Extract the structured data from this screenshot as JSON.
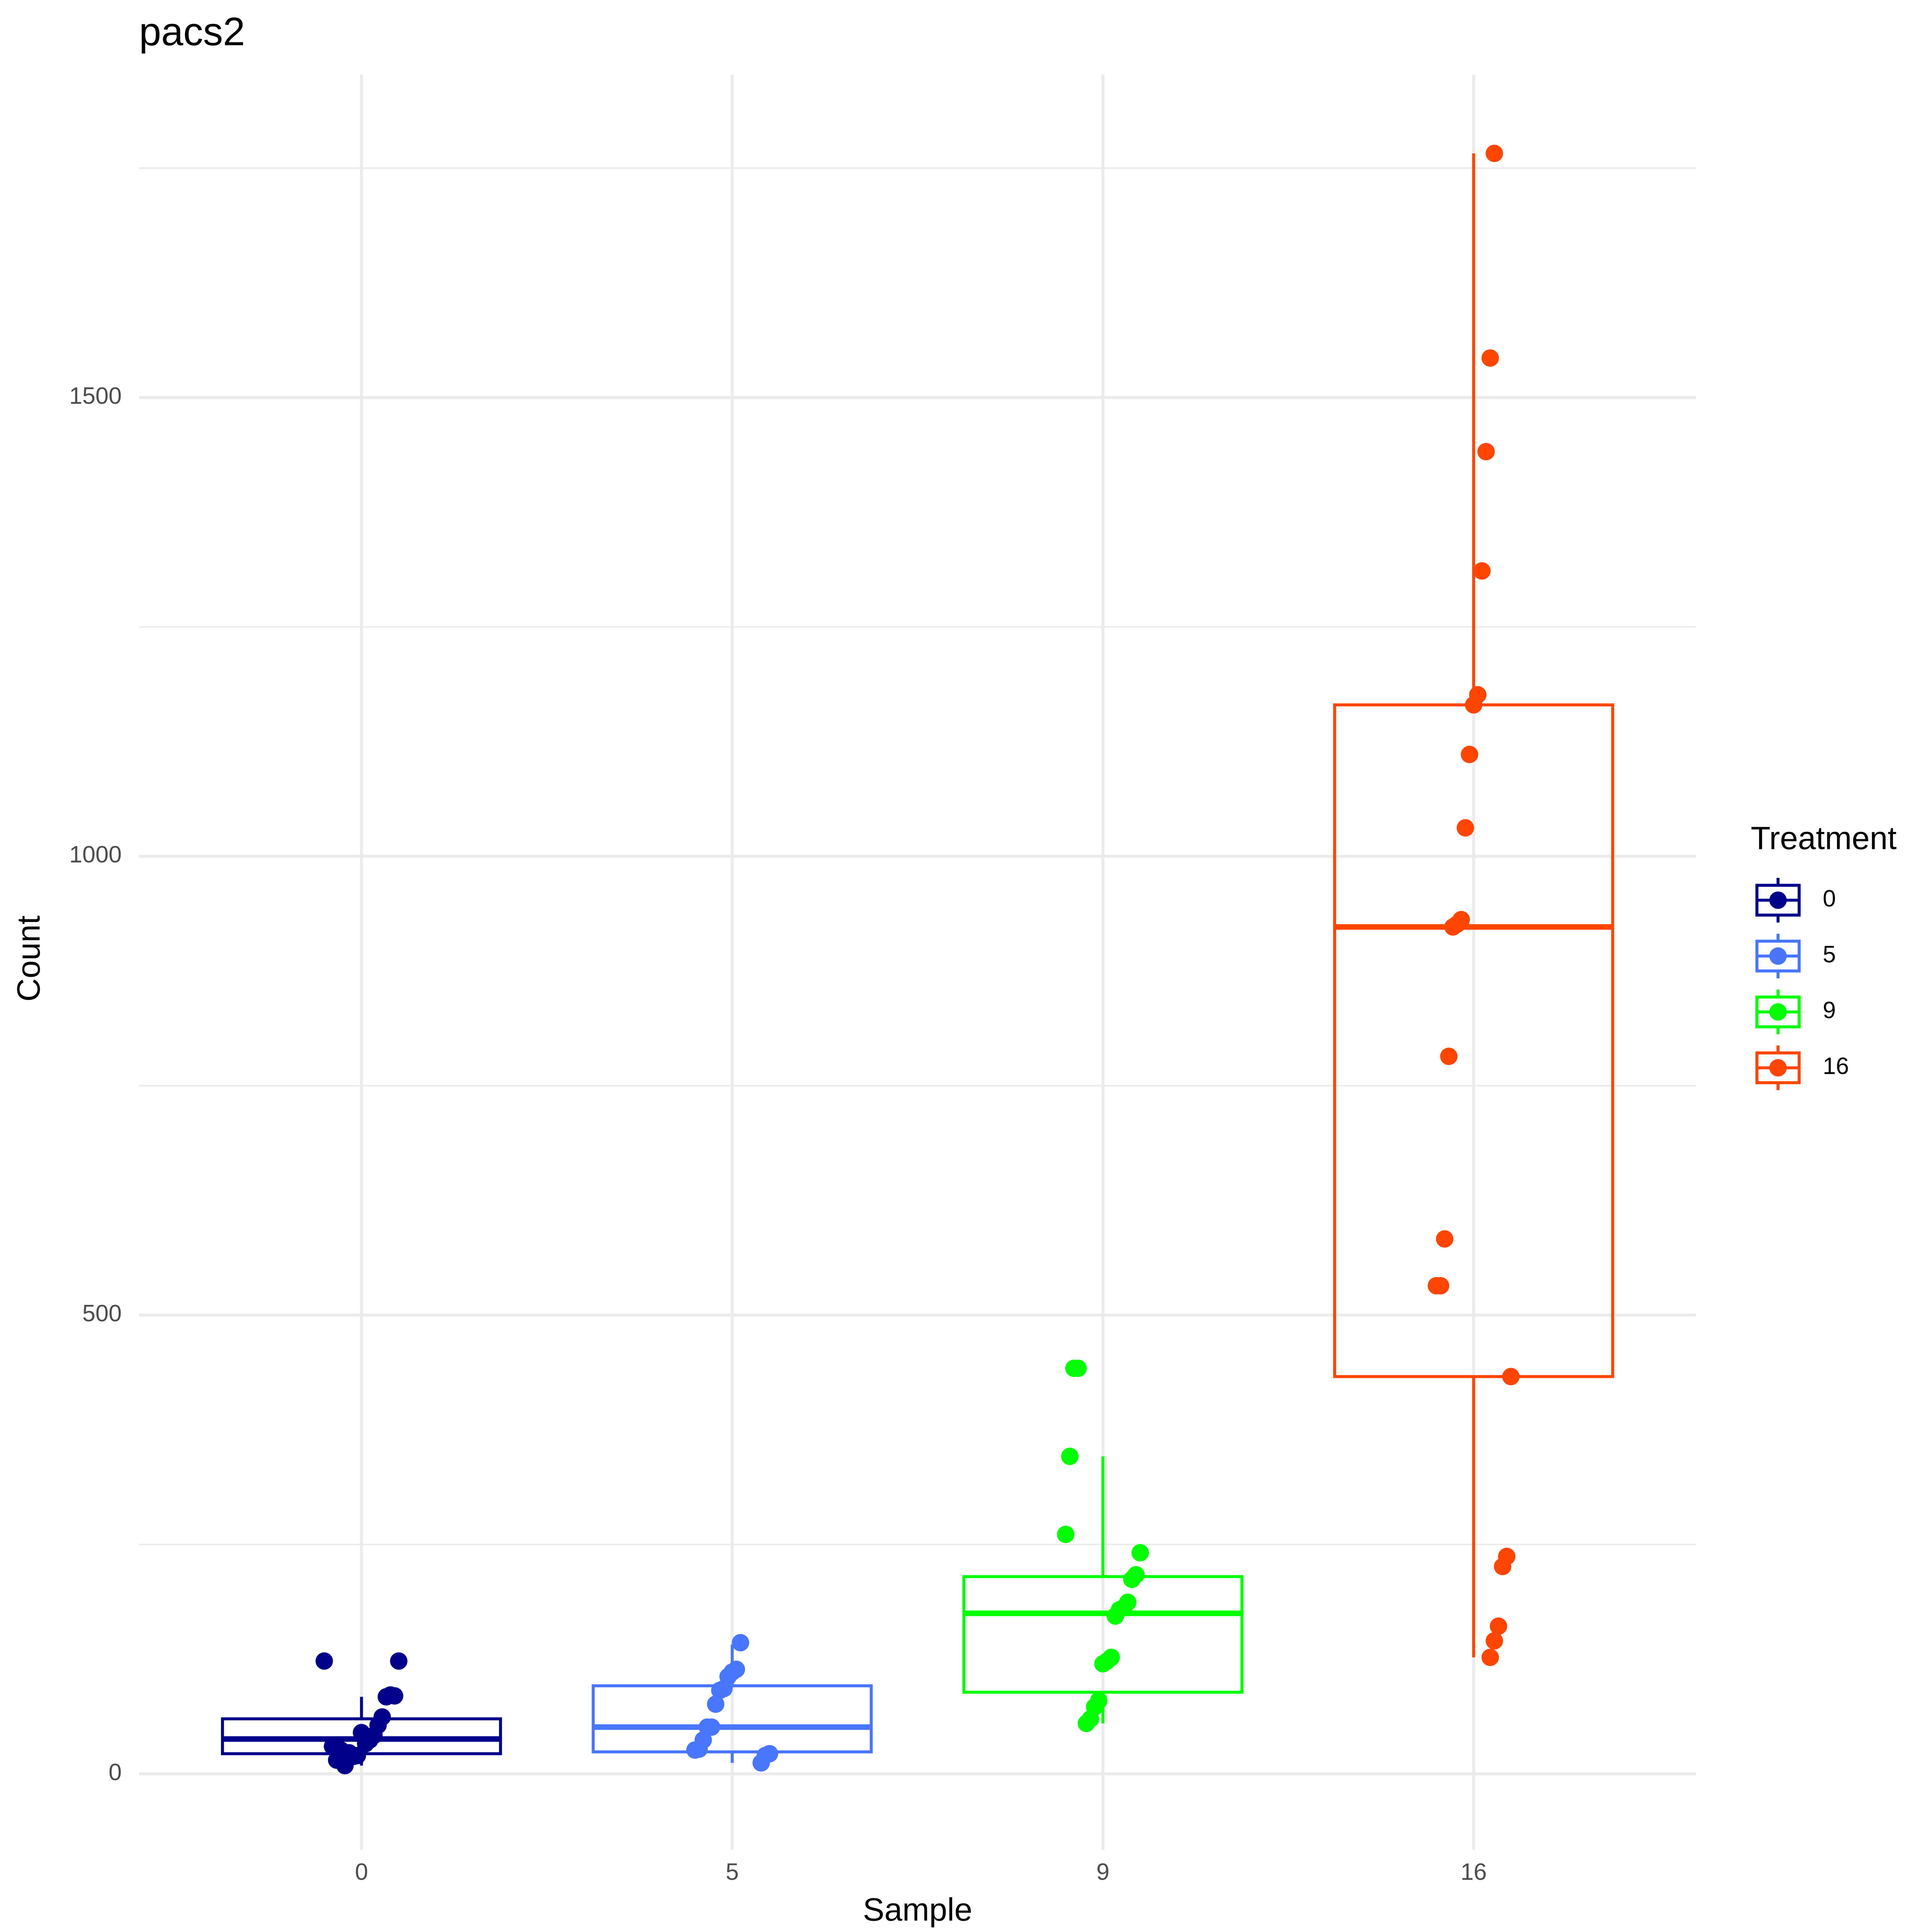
{
  "chart_data": {
    "type": "box",
    "title": "pacs2",
    "x_label": "Sample",
    "y_label": "Count",
    "legend_title": "Treatment",
    "legend": "right",
    "categories": [
      "0",
      "5",
      "9",
      "16"
    ],
    "ylim": [
      -83,
      1852
    ],
    "yticks": [
      0,
      500,
      1000,
      1500
    ],
    "yminor": [
      250,
      750,
      1250,
      1750
    ],
    "grid": true,
    "series": [
      {
        "name": "0",
        "color": "#00008b",
        "whisker_low": 9,
        "q1": 22,
        "median": 38,
        "q3": 60,
        "whisker_high": 84,
        "points": [
          123,
          123,
          85,
          86,
          84,
          62,
          53,
          42,
          37,
          33,
          45,
          20,
          19,
          23,
          9,
          26,
          15,
          30
        ]
      },
      {
        "name": "5",
        "color": "#4876ff",
        "whisker_low": 12,
        "q1": 24,
        "median": 51,
        "q3": 96,
        "whisker_high": 141,
        "points": [
          143,
          114,
          111,
          106,
          93,
          91,
          76,
          51,
          51,
          37,
          27,
          26,
          22,
          20,
          12
        ]
      },
      {
        "name": "9",
        "color": "#00ff00",
        "whisker_low": 55,
        "q1": 89,
        "median": 175,
        "q3": 215,
        "whisker_high": 346,
        "points": [
          442,
          442,
          346,
          261,
          241,
          217,
          212,
          187,
          181,
          179,
          172,
          127,
          123,
          120,
          80,
          73,
          60,
          55
        ]
      },
      {
        "name": "16",
        "color": "#ff4500",
        "whisker_low": 127,
        "q1": 433,
        "median": 923,
        "q3": 1165,
        "whisker_high": 1766,
        "points": [
          1766,
          1543,
          1441,
          1311,
          1176,
          1165,
          1111,
          1031,
          931,
          926,
          923,
          782,
          583,
          532,
          532,
          433,
          237,
          226,
          161,
          145,
          127
        ]
      }
    ]
  }
}
